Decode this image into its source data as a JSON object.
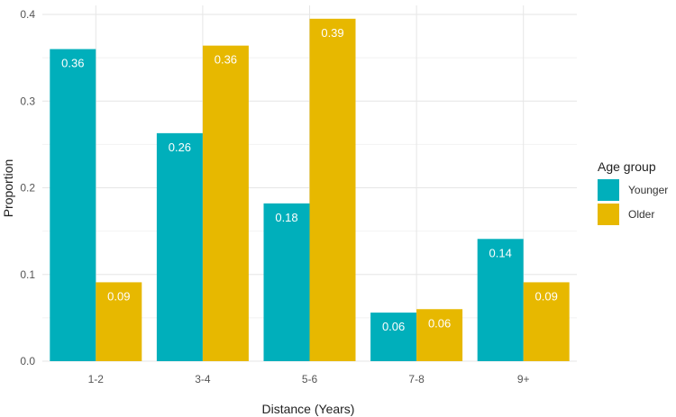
{
  "chart_data": {
    "type": "bar",
    "title": "",
    "xlabel": "Distance (Years)",
    "ylabel": "Proportion",
    "categories": [
      "1-2",
      "3-4",
      "5-6",
      "7-8",
      "9+"
    ],
    "series": [
      {
        "name": "Younger",
        "color": "#00AFBB",
        "values": [
          0.36,
          0.263,
          0.182,
          0.056,
          0.141
        ],
        "labels": [
          "0.36",
          "0.26",
          "0.18",
          "0.06",
          "0.14"
        ]
      },
      {
        "name": "Older",
        "color": "#E7B800",
        "values": [
          0.091,
          0.364,
          0.395,
          0.06,
          0.091
        ],
        "labels": [
          "0.09",
          "0.36",
          "0.39",
          "0.06",
          "0.09"
        ]
      }
    ],
    "ylim": [
      0,
      0.4
    ],
    "yticks": [
      0.0,
      0.1,
      0.2,
      0.3,
      0.4
    ],
    "ytick_labels": [
      "0.0",
      "0.1",
      "0.2",
      "0.3",
      "0.4"
    ],
    "grid": true,
    "legend": {
      "title": "Age group",
      "position": "right"
    }
  }
}
